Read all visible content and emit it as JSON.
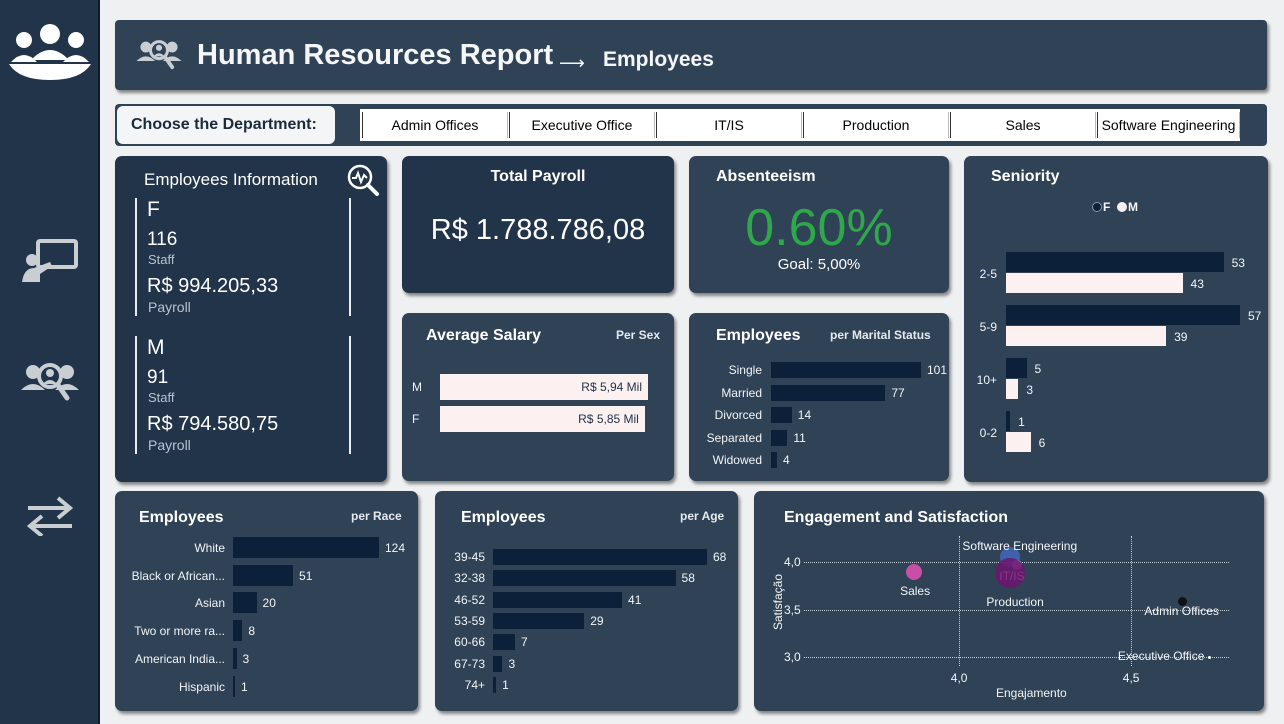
{
  "header": {
    "title": "Human Resources Report",
    "arrow": "⟶",
    "subtitle": "Employees"
  },
  "dept": {
    "label": "Choose the Department:",
    "options": [
      "Admin Offices",
      "Executive Office",
      "IT/IS",
      "Production",
      "Sales",
      "Software Engineering"
    ]
  },
  "info": {
    "title": "Employees Information",
    "f": {
      "sex": "F",
      "staff": "116",
      "staff_label": "Staff",
      "payroll": "R$ 994.205,33",
      "payroll_label": "Payroll"
    },
    "m": {
      "sex": "M",
      "staff": "91",
      "staff_label": "Staff",
      "payroll": "R$ 794.580,75",
      "payroll_label": "Payroll"
    }
  },
  "payroll": {
    "title": "Total Payroll",
    "value": "R$ 1.788.786,08"
  },
  "absenteeism": {
    "title": "Absenteeism",
    "value": "0.60%",
    "goal": "Goal:  5,00%",
    "color": "#2ea84a"
  },
  "seniority": {
    "title": "Seniority",
    "legend_f": "F",
    "legend_m": "M",
    "rows": [
      {
        "label": "2-5",
        "f": "53",
        "m": "43"
      },
      {
        "label": "5-9",
        "f": "57",
        "m": "39"
      },
      {
        "label": "10+",
        "f": "5",
        "m": "3"
      },
      {
        "label": "0-2",
        "f": "1",
        "m": "6"
      }
    ]
  },
  "avg_salary": {
    "title": "Average Salary",
    "sub": "Per Sex",
    "rows": [
      {
        "label": "M",
        "value": "R$ 5,94 Mil"
      },
      {
        "label": "F",
        "value": "R$ 5,85 Mil"
      }
    ]
  },
  "marital": {
    "title": "Employees",
    "sub": "per Marital Status",
    "rows": [
      {
        "label": "Single",
        "value": "101"
      },
      {
        "label": "Married",
        "value": "77"
      },
      {
        "label": "Divorced",
        "value": "14"
      },
      {
        "label": "Separated",
        "value": "11"
      },
      {
        "label": "Widowed",
        "value": "4"
      }
    ]
  },
  "race": {
    "title": "Employees",
    "sub": "per Race",
    "rows": [
      {
        "label": "White",
        "value": "124"
      },
      {
        "label": "Black or African...",
        "value": "51"
      },
      {
        "label": "Asian",
        "value": "20"
      },
      {
        "label": "Two or more ra...",
        "value": "8"
      },
      {
        "label": "American India...",
        "value": "3"
      },
      {
        "label": "Hispanic",
        "value": "1"
      }
    ]
  },
  "age": {
    "title": "Employees",
    "sub": "per Age",
    "rows": [
      {
        "label": "39-45",
        "value": "68"
      },
      {
        "label": "32-38",
        "value": "58"
      },
      {
        "label": "46-52",
        "value": "41"
      },
      {
        "label": "53-59",
        "value": "29"
      },
      {
        "label": "60-66",
        "value": "7"
      },
      {
        "label": "67-73",
        "value": "3"
      },
      {
        "label": "74+",
        "value": "1"
      }
    ]
  },
  "engagement": {
    "title": "Engagement and Satisfaction",
    "xlabel": "Engajamento",
    "ylabel": "Satisfação",
    "y_ticks": [
      "4,0",
      "3,5",
      "3,0"
    ],
    "x_ticks": [
      "4,0",
      "4,5"
    ],
    "points": [
      {
        "label": "Software Engineering"
      },
      {
        "label": "IT/IS"
      },
      {
        "label": "Sales"
      },
      {
        "label": "Production"
      },
      {
        "label": "Admin Offices"
      },
      {
        "label": "Executive Office"
      }
    ]
  },
  "chart_data": [
    {
      "type": "bar",
      "title": "Seniority",
      "categories": [
        "2-5",
        "5-9",
        "10+",
        "0-2"
      ],
      "series": [
        {
          "name": "F",
          "values": [
            53,
            57,
            5,
            1
          ]
        },
        {
          "name": "M",
          "values": [
            43,
            39,
            3,
            6
          ]
        }
      ]
    },
    {
      "type": "bar",
      "title": "Average Salary",
      "categories": [
        "M",
        "F"
      ],
      "values": [
        5.94,
        5.85
      ]
    },
    {
      "type": "bar",
      "title": "Employees",
      "categories": [
        "Single",
        "Married",
        "Divorced",
        "Separated",
        "Widowed"
      ],
      "values": [
        101,
        77,
        14,
        11,
        4
      ]
    },
    {
      "type": "bar",
      "title": "Employees",
      "categories": [
        "White",
        "Black or African...",
        "Asian",
        "Two or more ra...",
        "American India...",
        "Hispanic"
      ],
      "values": [
        124,
        51,
        20,
        8,
        3,
        1
      ]
    },
    {
      "type": "bar",
      "title": "Employees",
      "categories": [
        "39-45",
        "32-38",
        "46-52",
        "53-59",
        "60-66",
        "67-73",
        "74+"
      ],
      "values": [
        68,
        58,
        41,
        29,
        7,
        3,
        1
      ]
    },
    {
      "type": "scatter",
      "title": "Engagement and Satisfaction",
      "xlabel": "Engajamento",
      "ylabel": "Satisfação",
      "xlim": [
        3.55,
        4.8
      ],
      "ylim": [
        2.9,
        4.2
      ],
      "points": [
        {
          "label": "Software Engineering",
          "x": 4.15,
          "y": 4.05
        },
        {
          "label": "IT/IS",
          "x": 4.17,
          "y": 3.97
        },
        {
          "label": "Sales",
          "x": 3.87,
          "y": 3.9
        },
        {
          "label": "Production",
          "x": 4.15,
          "y": 3.88
        },
        {
          "label": "Admin Offices",
          "x": 4.65,
          "y": 3.58
        },
        {
          "label": "Executive Office",
          "x": 4.73,
          "y": 3.0
        }
      ]
    }
  ]
}
